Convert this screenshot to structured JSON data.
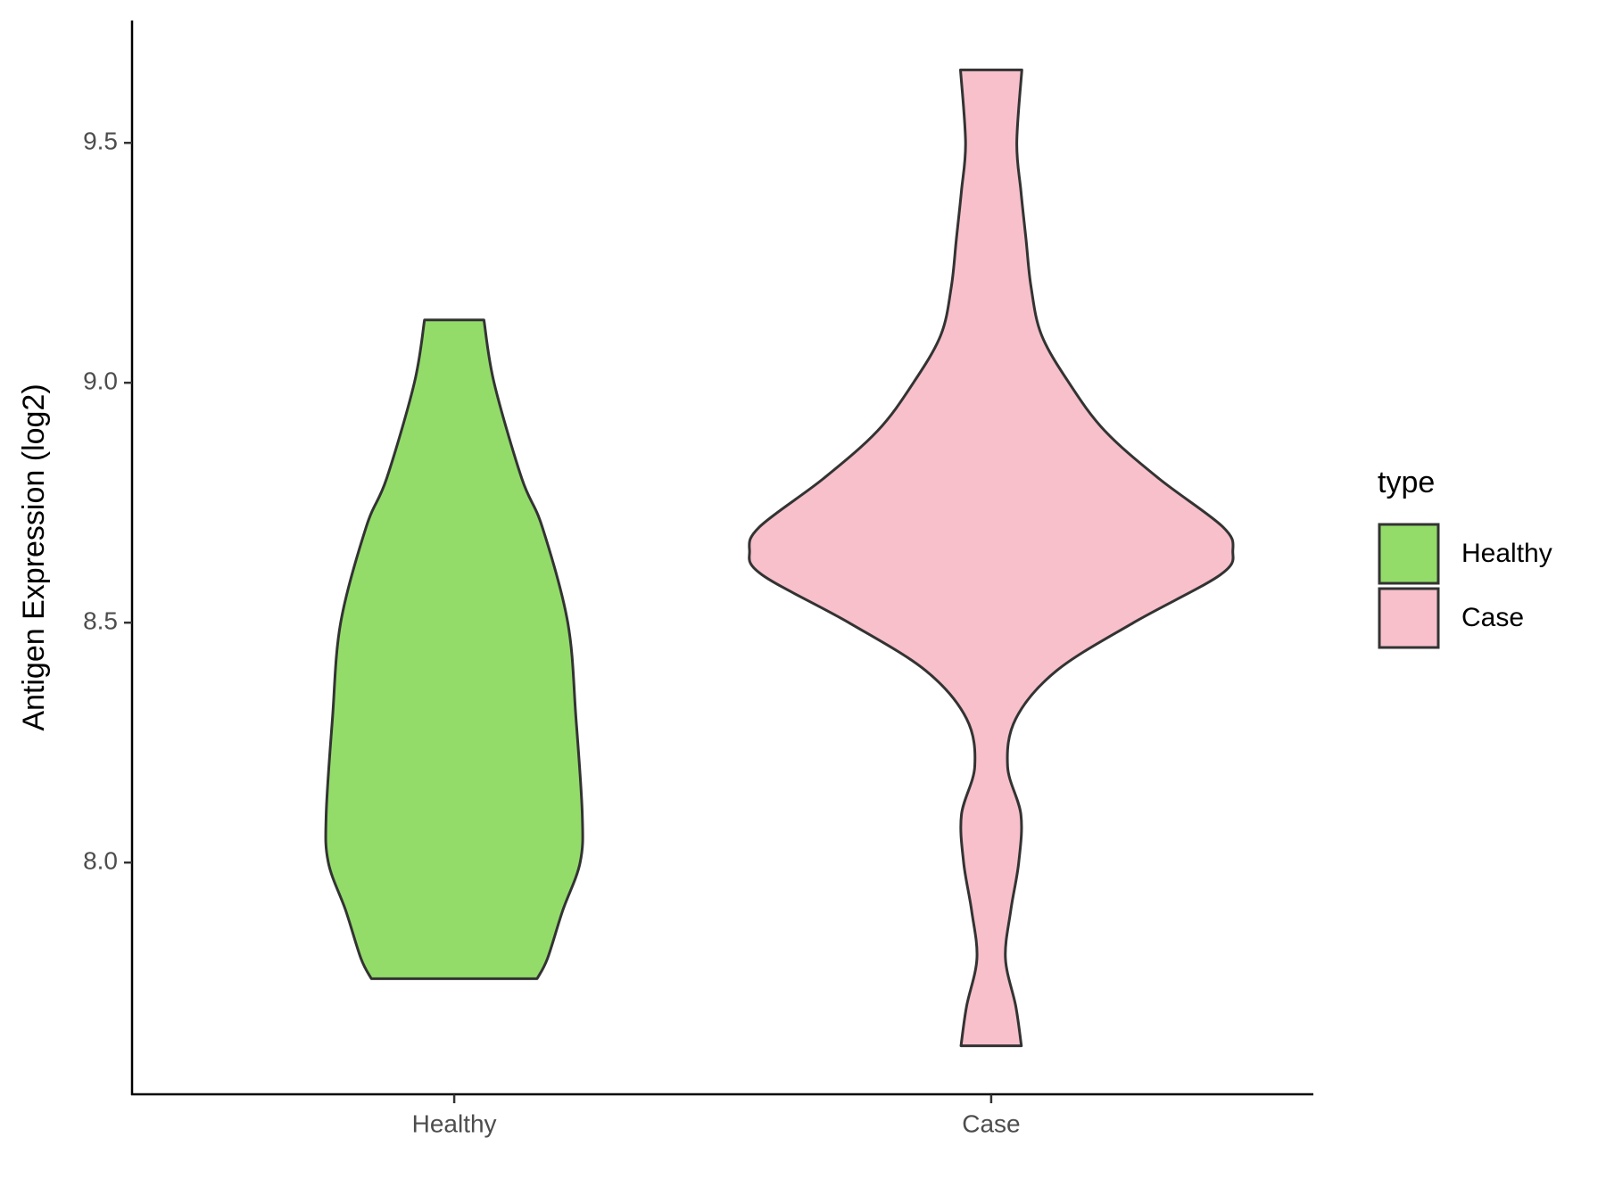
{
  "chart_data": {
    "type": "violin",
    "y_label": "Antigen Expression (log2)",
    "categories": [
      "Healthy",
      "Case"
    ],
    "legend_title": "type",
    "legend_position": "right",
    "ylim": [
      7.517,
      9.755
    ],
    "yticks": [
      {
        "value": 8,
        "label": "8.0"
      },
      8.5,
      {
        "value": 9,
        "label": "9.0"
      },
      9.5
    ],
    "series": [
      {
        "name": "Healthy",
        "color": "#93dc6a",
        "y": [
          7.758,
          7.8,
          7.9,
          8.0,
          8.1,
          8.3,
          8.5,
          8.7,
          8.8,
          9.0,
          9.131
        ],
        "width": [
          0.343,
          0.386,
          0.449,
          0.521,
          0.53,
          0.504,
          0.47,
          0.364,
          0.28,
          0.165,
          0.123
        ]
      },
      {
        "name": "Case",
        "color": "#f7c0cb",
        "y": [
          7.618,
          7.7,
          7.8,
          7.9,
          8.0,
          8.1,
          8.2,
          8.3,
          8.4,
          8.5,
          8.6,
          8.65,
          8.7,
          8.8,
          8.9,
          9.0,
          9.1,
          9.2,
          9.3,
          9.4,
          9.5,
          9.652
        ],
        "width": [
          0.125,
          0.102,
          0.059,
          0.081,
          0.114,
          0.123,
          0.068,
          0.102,
          0.271,
          0.589,
          0.949,
          1.0,
          0.958,
          0.695,
          0.47,
          0.322,
          0.208,
          0.165,
          0.144,
          0.123,
          0.106,
          0.127
        ]
      }
    ]
  }
}
